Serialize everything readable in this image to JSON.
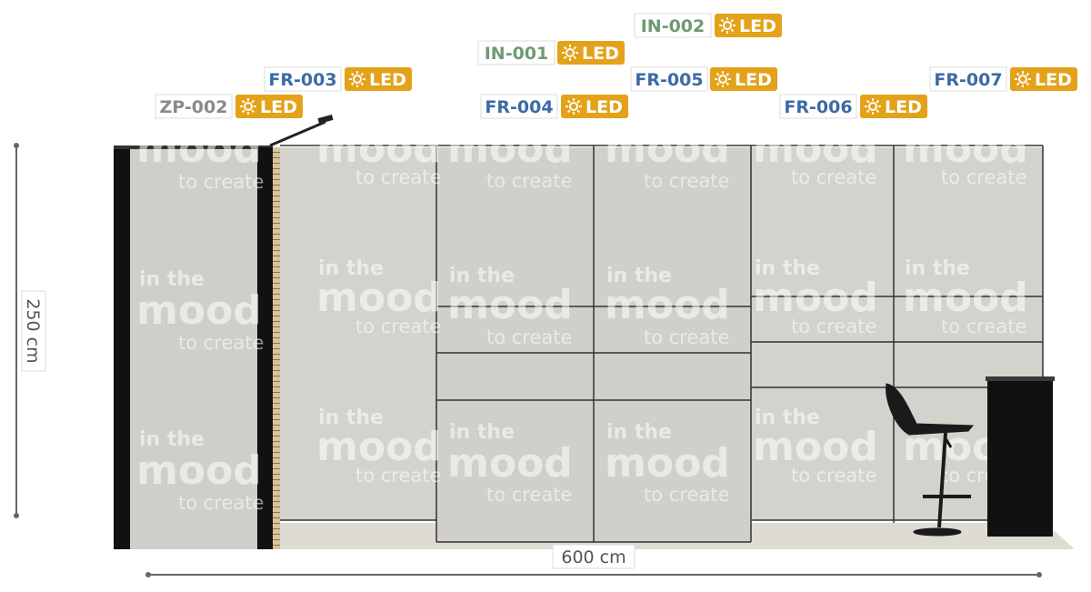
{
  "labels": [
    {
      "code": "ZP-002",
      "badge": "LED"
    },
    {
      "code": "FR-003",
      "badge": "LED"
    },
    {
      "code": "FR-004",
      "badge": "LED"
    },
    {
      "code": "IN-001",
      "badge": "LED"
    },
    {
      "code": "IN-002",
      "badge": "LED"
    },
    {
      "code": "FR-005",
      "badge": "LED"
    },
    {
      "code": "FR-006",
      "badge": "LED"
    },
    {
      "code": "FR-007",
      "badge": "LED"
    }
  ],
  "watermark": [
    "in the",
    "mood",
    "to create"
  ],
  "dimensions": {
    "height": "250 cm",
    "width": "600 cm"
  }
}
